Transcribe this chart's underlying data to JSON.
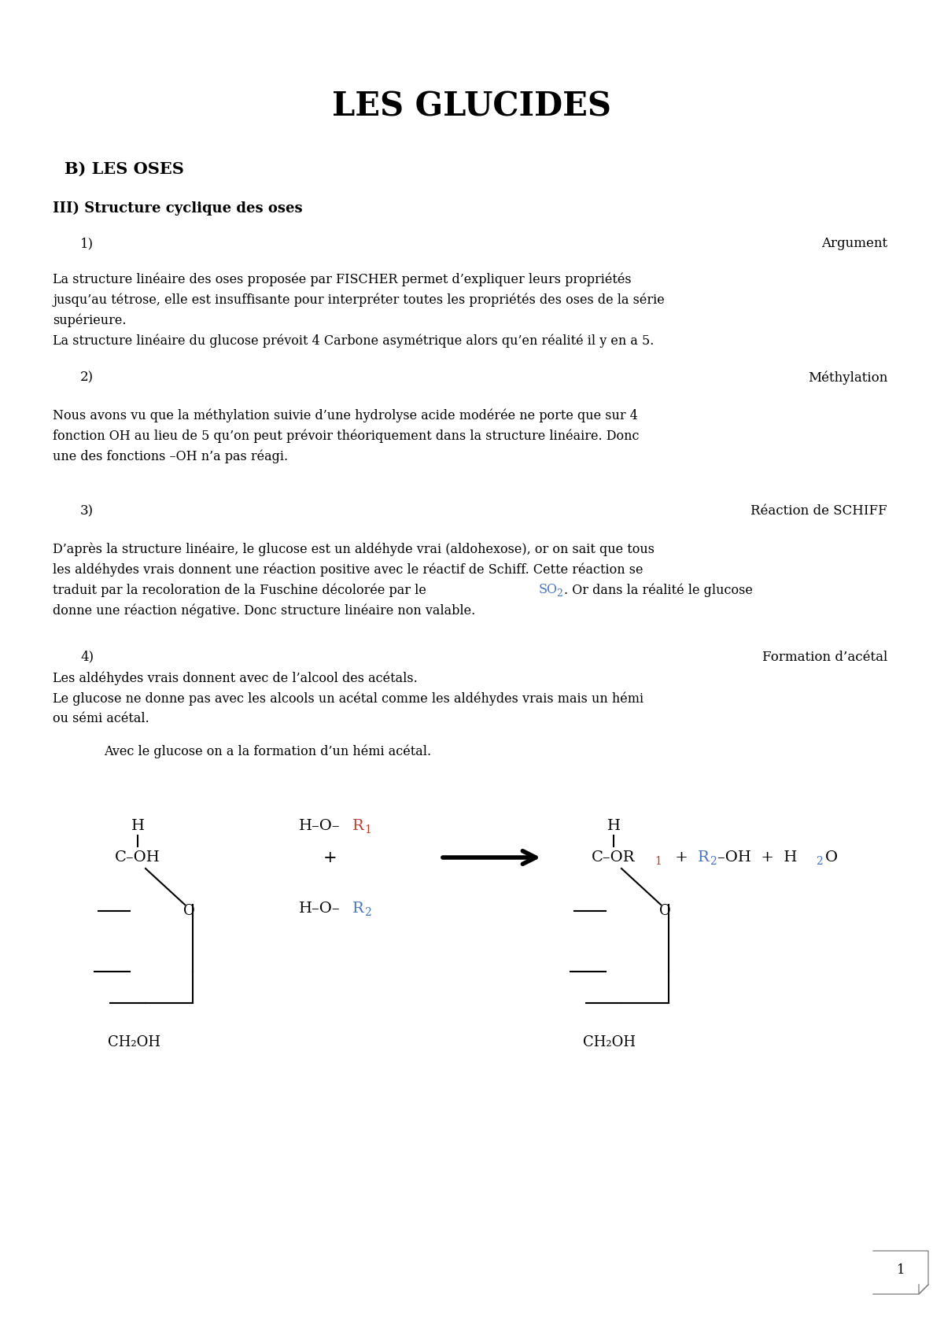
{
  "title": "LES GLUCIDES",
  "bg_color": "#ffffff",
  "text_color": "#000000",
  "section_b": "B) LES OSES",
  "section_iii": "III) Structure cyclique des oses",
  "item1_left": "1)",
  "item1_right": "Argument",
  "para1_lines": [
    "La structure linéaire des oses proposée par FISCHER permet d’expliquer leurs propriétés",
    "jusqu’au tétrose, elle est insuffisante pour interpréter toutes les propriétés des oses de la série",
    "supérieure.",
    "La structure linéaire du glucose prévoit 4 Carbone asymétrique alors qu’en réalité il y en a 5."
  ],
  "item2_left": "2)",
  "item2_right": "Méthylation",
  "para2_lines": [
    "Nous avons vu que la méthylation suivie d’une hydrolyse acide modérée ne porte que sur 4",
    "fonction OH au lieu de 5 qu’on peut prévoir théoriquement dans la structure linéaire. Donc",
    "une des fonctions –OH n’a pas réagi."
  ],
  "item3_left": "3)",
  "item3_right": "Réaction de SCHIFF",
  "para3_line0": "D’après la structure linéaire, le glucose est un aldéhyde vrai (aldohexose), or on sait que tous",
  "para3_line1": "les aldéhydes vrais donnent une réaction positive avec le réactif de Schiff. Cette réaction se",
  "para3_line2a": "traduit par la recoloration de la Fuschine décolorée par le ",
  "para3_line2b": "SO",
  "para3_line2c": "2",
  "para3_line2d": ". Or dans la réalité le glucose",
  "para3_line3": "donne une réaction négative. Donc structure linéaire non valable.",
  "item4_left": "4)",
  "item4_right": "Formation d’acétal",
  "para4a": "Les aldéhydes vrais donnent avec de l’alcool des acétals.",
  "para4b_line0": "Le glucose ne donne pas avec les alcools un acétal comme les aldéhydes vrais mais un hémi",
  "para4b_line1": "ou sémi acétal.",
  "para4c": "Avec le glucose on a la formation d’un hémi acétal.",
  "page_number": "1",
  "red_color": "#c0392b",
  "blue_color": "#4472c4"
}
